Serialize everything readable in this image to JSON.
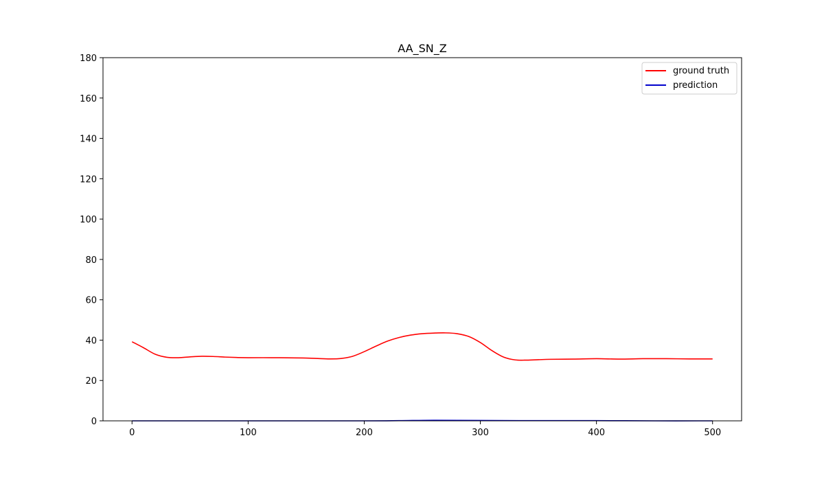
{
  "chart_data": {
    "type": "line",
    "title": "AA_SN_Z",
    "xlabel": "",
    "ylabel": "",
    "xlim": [
      -25,
      525
    ],
    "ylim": [
      0,
      180
    ],
    "x_ticks": [
      0,
      100,
      200,
      300,
      400,
      500
    ],
    "y_ticks": [
      0,
      20,
      40,
      60,
      80,
      100,
      120,
      140,
      160,
      180
    ],
    "grid": false,
    "legend_position": "top-right",
    "series": [
      {
        "name": "ground truth",
        "color": "#ff0000",
        "x": [
          0,
          10,
          20,
          30,
          40,
          50,
          60,
          70,
          80,
          90,
          100,
          120,
          140,
          150,
          160,
          170,
          180,
          190,
          200,
          210,
          220,
          230,
          240,
          250,
          260,
          270,
          280,
          290,
          300,
          310,
          320,
          330,
          340,
          350,
          360,
          380,
          400,
          420,
          440,
          460,
          480,
          500
        ],
        "y": [
          39.2,
          36.2,
          33.0,
          31.5,
          31.3,
          31.7,
          32.0,
          31.9,
          31.6,
          31.4,
          31.3,
          31.3,
          31.2,
          31.1,
          30.9,
          30.7,
          30.9,
          32.0,
          34.3,
          37.0,
          39.5,
          41.3,
          42.5,
          43.2,
          43.5,
          43.6,
          43.2,
          41.8,
          38.8,
          34.8,
          31.6,
          30.2,
          30.1,
          30.3,
          30.5,
          30.6,
          30.8,
          30.6,
          30.8,
          30.8,
          30.7,
          30.7
        ]
      },
      {
        "name": "prediction",
        "color": "#0000cc",
        "x": [
          0,
          100,
          200,
          230,
          260,
          300,
          350,
          400,
          450,
          500
        ],
        "y": [
          0.0,
          0.0,
          0.0,
          0.1,
          0.3,
          0.2,
          0.1,
          0.1,
          0.0,
          0.0
        ]
      }
    ]
  }
}
